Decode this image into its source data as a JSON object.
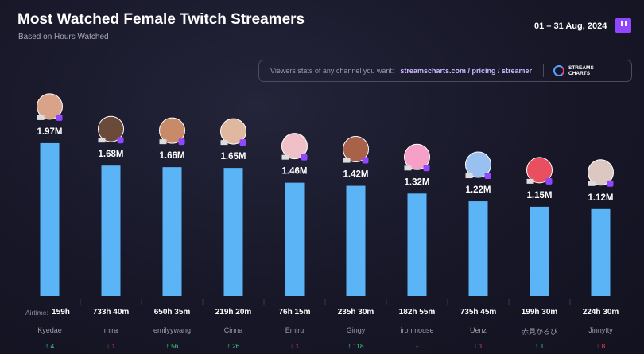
{
  "header": {
    "title": "Most Watched Female Twitch Streamers",
    "subtitle": "Based on Hours Watched",
    "date_range": "01 – 31 Aug, 2024"
  },
  "banner": {
    "lead": "Viewers stats of any channel you want:",
    "link": "streamscharts.com / pricing / streamer",
    "logo_text": "STREAMS CHARTS"
  },
  "airtime_label": "Airtime:",
  "colors": {
    "bar": "#5ab4f5",
    "up": "#3ecf7a",
    "down": "#e8434f",
    "background": "#161626"
  },
  "chart_data": {
    "type": "bar",
    "title": "Most Watched Female Twitch Streamers",
    "subtitle": "Based on Hours Watched",
    "categories": [
      "Kyedae",
      "mira",
      "emilyywang",
      "Cinna",
      "Emiru",
      "Gingy",
      "ironmouse",
      "Uenz",
      "赤見かるび",
      "Jinnytty"
    ],
    "values": [
      1.97,
      1.68,
      1.66,
      1.65,
      1.46,
      1.42,
      1.32,
      1.22,
      1.15,
      1.12
    ],
    "value_labels": [
      "1.97M",
      "1.68M",
      "1.66M",
      "1.65M",
      "1.46M",
      "1.42M",
      "1.32M",
      "1.22M",
      "1.15M",
      "1.12M"
    ],
    "airtime": [
      "159h",
      "733h 40m",
      "650h 35m",
      "219h 20m",
      "76h 15m",
      "235h 30m",
      "182h 55m",
      "735h 45m",
      "199h 30m",
      "224h 30m"
    ],
    "rank_change": [
      "4",
      "1",
      "56",
      "26",
      "1",
      "118",
      "-",
      "1",
      "1",
      "8"
    ],
    "rank_direction": [
      "up",
      "down",
      "up",
      "up",
      "down",
      "up",
      "none",
      "down",
      "up",
      "down"
    ],
    "ylim": [
      0,
      2.0
    ],
    "grid": false,
    "unit": "hours watched"
  }
}
